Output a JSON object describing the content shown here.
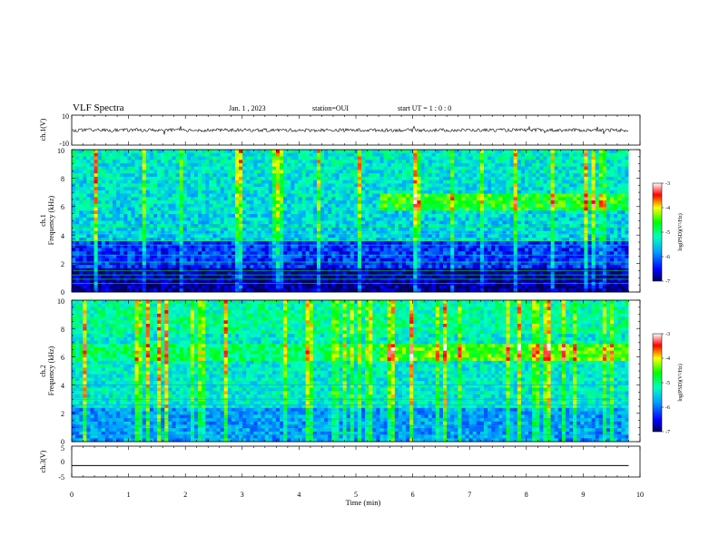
{
  "header": {
    "title": "VLF Spectra",
    "date": "Jan. 1 , 2023",
    "station": "station=OUI",
    "start": "start UT =  1 : 0  : 0"
  },
  "chart_data": [
    {
      "type": "line",
      "ylabel": "ch.1(V)",
      "ylim": [
        -10,
        10
      ],
      "yticks": [
        "10",
        "-10"
      ],
      "baseline": 0,
      "color": "#000000"
    },
    {
      "type": "heatmap",
      "ylabel": "ch.1\nFrequency (kHz)",
      "ylim": [
        0,
        10
      ],
      "yticks": [
        "0",
        "2",
        "4",
        "6",
        "8",
        "10"
      ],
      "colorbar": {
        "label": "log(PSD)(V²/Hz)",
        "range": [
          -7,
          -3
        ],
        "ticks": [
          "-3",
          "-4",
          "-5",
          "-6",
          "-7"
        ]
      }
    },
    {
      "type": "heatmap",
      "ylabel": "ch.2\nFrequency (kHz)",
      "ylim": [
        0,
        10
      ],
      "yticks": [
        "0",
        "2",
        "4",
        "6",
        "8",
        "10"
      ],
      "colorbar": {
        "label": "log(PSD)(V²/Hz)",
        "range": [
          -7,
          -3
        ],
        "ticks": [
          "-3",
          "-4",
          "-5",
          "-6",
          "-7"
        ]
      }
    },
    {
      "type": "line",
      "ylabel": "ch.3(V)",
      "ylim": [
        -5,
        5
      ],
      "yticks": [
        "5",
        "0",
        "-5"
      ],
      "baseline": -1.3,
      "color": "#000000"
    }
  ],
  "xaxis": {
    "label": "Time (min)",
    "range": [
      0,
      10
    ],
    "ticks": [
      "0",
      "1",
      "2",
      "3",
      "4",
      "5",
      "6",
      "7",
      "8",
      "9",
      "10"
    ]
  }
}
